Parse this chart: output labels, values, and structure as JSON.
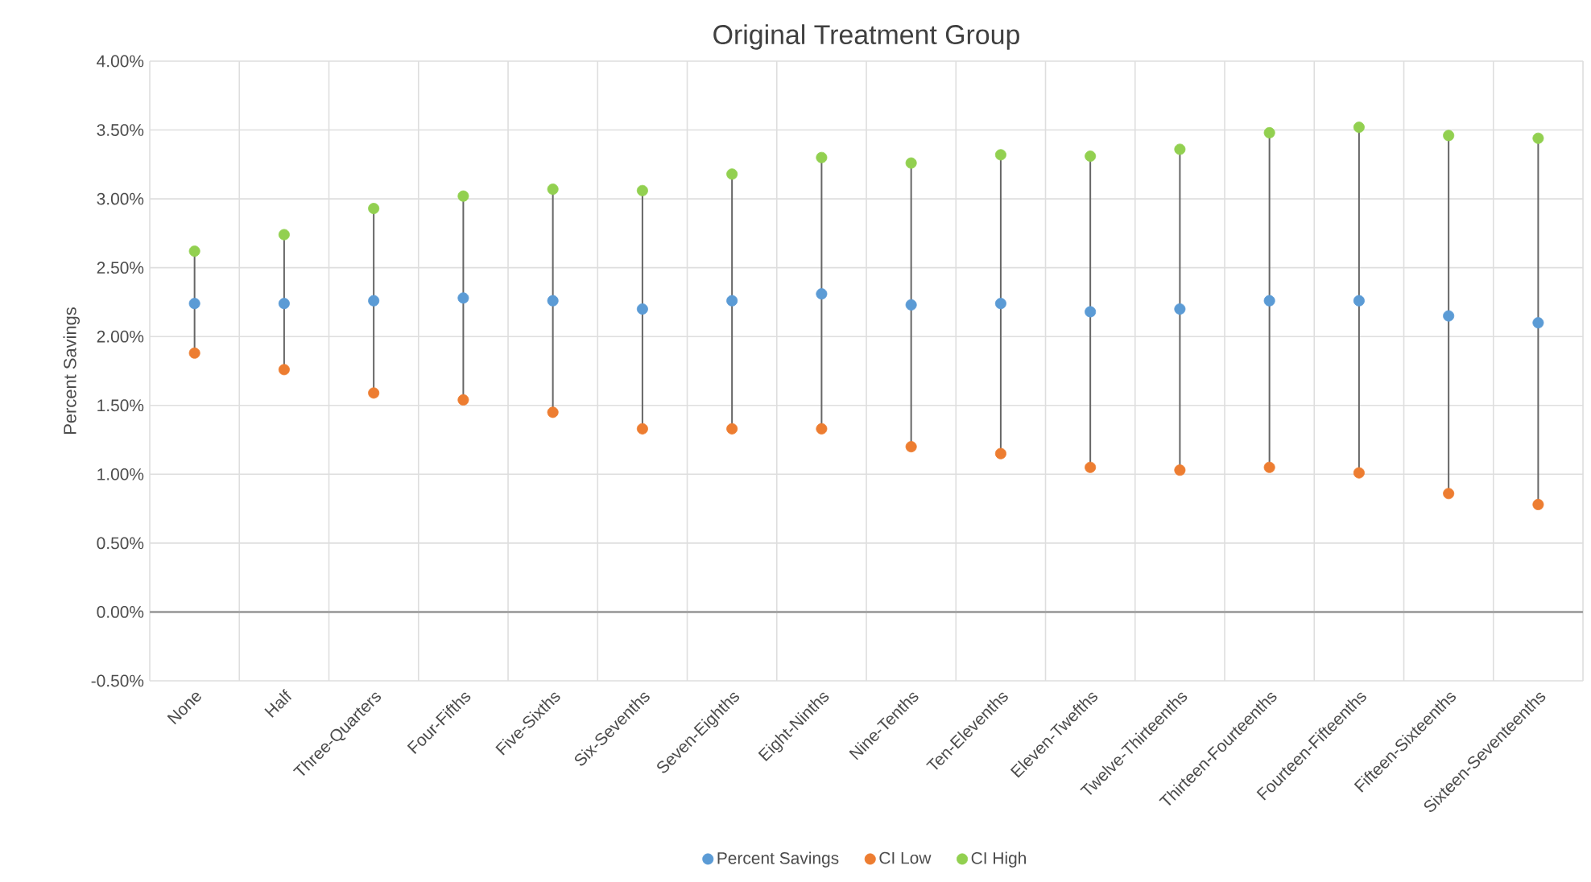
{
  "chart_data": {
    "type": "scatter",
    "title": "Original Treatment Group",
    "ylabel": "Percent Savings",
    "categories": [
      "None",
      "Half",
      "Three-Quarters",
      "Four-Fifths",
      "Five-Sixths",
      "Six-Sevenths",
      "Seven-Eighths",
      "Eight-Ninths",
      "Nine-Tenths",
      "Ten-Elevenths",
      "Eleven-Twefths",
      "Twelve-Thirteenths",
      "Thirteen-Fourteenths",
      "Fourteen-Fifteenths",
      "Fifteen-Sixteenths",
      "Sixteen-Seventeenths"
    ],
    "series": [
      {
        "name": "Percent Savings",
        "color": "#5b9bd5",
        "values": [
          2.24,
          2.24,
          2.26,
          2.28,
          2.26,
          2.2,
          2.26,
          2.31,
          2.23,
          2.24,
          2.18,
          2.2,
          2.26,
          2.26,
          2.15,
          2.1
        ]
      },
      {
        "name": "CI Low",
        "color": "#ed7d31",
        "values": [
          1.88,
          1.76,
          1.59,
          1.54,
          1.45,
          1.33,
          1.33,
          1.33,
          1.2,
          1.15,
          1.05,
          1.03,
          1.05,
          1.01,
          0.86,
          0.78
        ]
      },
      {
        "name": "CI High",
        "color": "#92d050",
        "values": [
          2.62,
          2.74,
          2.93,
          3.02,
          3.07,
          3.06,
          3.18,
          3.3,
          3.26,
          3.32,
          3.31,
          3.36,
          3.48,
          3.52,
          3.46,
          3.44
        ]
      }
    ],
    "ylim": [
      -0.5,
      4.0
    ],
    "yticks": [
      {
        "value": -0.5,
        "label": "-0.50%"
      },
      {
        "value": 0,
        "label": "0.00%"
      },
      {
        "value": 0.5,
        "label": "0.50%"
      },
      {
        "value": 1.0,
        "label": "1.00%"
      },
      {
        "value": 1.5,
        "label": "1.50%"
      },
      {
        "value": 2.0,
        "label": "2.00%"
      },
      {
        "value": 2.5,
        "label": "2.50%"
      },
      {
        "value": 3.0,
        "label": "3.00%"
      },
      {
        "value": 3.5,
        "label": "3.50%"
      },
      {
        "value": 4.0,
        "label": "4.00%"
      }
    ],
    "grid": true,
    "legend": "bottom",
    "marker": "circle"
  }
}
